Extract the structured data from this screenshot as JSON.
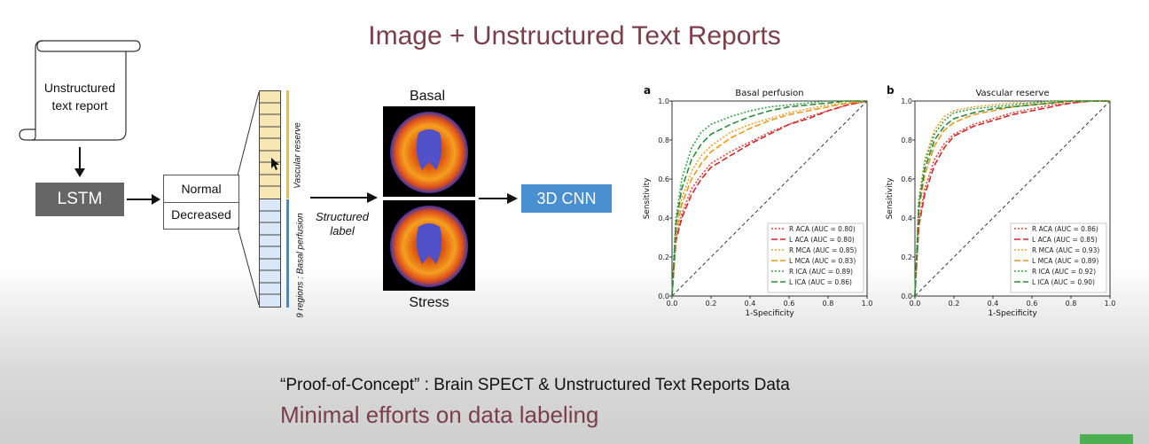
{
  "title": "Image + Unstructured Text Reports",
  "scroll_label": "Unstructured text report",
  "lstm_label": "LSTM",
  "labels": [
    "Normal",
    "Decreased"
  ],
  "vertical_labels": {
    "vascular": "Vascular reserve",
    "basal": "9 regions : Basal perfusion"
  },
  "structured_label": "Structured label",
  "scan_top": "Basal",
  "scan_bottom": "Stress",
  "cnn_label": "3D CNN",
  "footer": {
    "line1": "“Proof-of-Concept” : Brain SPECT & Unstructured Text Reports Data",
    "line2": "Minimal efforts on data labeling"
  },
  "chart_data": [
    {
      "type": "line",
      "panel_letter": "a",
      "title": "Basal perfusion",
      "xlabel": "1-Specificity",
      "ylabel": "Sensitivity",
      "xlim": [
        0,
        1
      ],
      "ylim": [
        0,
        1
      ],
      "ticks": [
        "0.0",
        "0.2",
        "0.4",
        "0.6",
        "0.8",
        "1.0"
      ],
      "legend_position": "bottom-right",
      "series": [
        {
          "name": "R ACA (AUC = 0.80)",
          "color": "#e8453c",
          "dash": "2,2",
          "x": [
            0,
            0.02,
            0.05,
            0.1,
            0.15,
            0.2,
            0.3,
            0.4,
            0.5,
            0.6,
            0.7,
            0.8,
            0.9,
            1
          ],
          "y": [
            0,
            0.3,
            0.42,
            0.55,
            0.62,
            0.68,
            0.74,
            0.79,
            0.84,
            0.88,
            0.92,
            0.95,
            0.98,
            1
          ]
        },
        {
          "name": "L ACA (AUC = 0.80)",
          "color": "#d62728",
          "dash": "7,3",
          "x": [
            0,
            0.02,
            0.05,
            0.1,
            0.15,
            0.2,
            0.3,
            0.4,
            0.5,
            0.6,
            0.7,
            0.8,
            0.9,
            1
          ],
          "y": [
            0,
            0.28,
            0.4,
            0.52,
            0.6,
            0.66,
            0.72,
            0.78,
            0.83,
            0.88,
            0.91,
            0.95,
            0.98,
            1
          ]
        },
        {
          "name": "R MCA (AUC = 0.85)",
          "color": "#f0a030",
          "dash": "2,2",
          "x": [
            0,
            0.02,
            0.05,
            0.1,
            0.15,
            0.2,
            0.3,
            0.4,
            0.5,
            0.6,
            0.7,
            0.8,
            0.9,
            1
          ],
          "y": [
            0,
            0.35,
            0.5,
            0.64,
            0.72,
            0.77,
            0.84,
            0.88,
            0.91,
            0.94,
            0.96,
            0.98,
            0.99,
            1
          ]
        },
        {
          "name": "L MCA (AUC = 0.83)",
          "color": "#e89a1c",
          "dash": "7,3",
          "x": [
            0,
            0.02,
            0.05,
            0.1,
            0.15,
            0.2,
            0.3,
            0.4,
            0.5,
            0.6,
            0.7,
            0.8,
            0.9,
            1
          ],
          "y": [
            0,
            0.32,
            0.47,
            0.6,
            0.68,
            0.74,
            0.81,
            0.86,
            0.9,
            0.93,
            0.95,
            0.97,
            0.99,
            1
          ]
        },
        {
          "name": "R ICA (AUC = 0.89)",
          "color": "#3aa04a",
          "dash": "2,2",
          "x": [
            0,
            0.02,
            0.05,
            0.1,
            0.15,
            0.2,
            0.3,
            0.4,
            0.5,
            0.6,
            0.7,
            0.8,
            0.9,
            1
          ],
          "y": [
            0,
            0.4,
            0.6,
            0.76,
            0.84,
            0.88,
            0.92,
            0.95,
            0.97,
            0.98,
            0.99,
            1,
            1,
            1
          ]
        },
        {
          "name": "L ICA (AUC = 0.86)",
          "color": "#2e8b3a",
          "dash": "7,3",
          "x": [
            0,
            0.02,
            0.05,
            0.1,
            0.15,
            0.2,
            0.3,
            0.4,
            0.5,
            0.6,
            0.7,
            0.8,
            0.9,
            1
          ],
          "y": [
            0,
            0.37,
            0.55,
            0.7,
            0.78,
            0.83,
            0.88,
            0.92,
            0.95,
            0.97,
            0.98,
            0.99,
            1,
            1
          ]
        }
      ]
    },
    {
      "type": "line",
      "panel_letter": "b",
      "title": "Vascular reserve",
      "xlabel": "1-Specificity",
      "ylabel": "Sensitivity",
      "xlim": [
        0,
        1
      ],
      "ylim": [
        0,
        1
      ],
      "ticks": [
        "0.0",
        "0.2",
        "0.4",
        "0.6",
        "0.8",
        "1.0"
      ],
      "legend_position": "bottom-right",
      "series": [
        {
          "name": "R ACA (AUC = 0.86)",
          "color": "#e8453c",
          "dash": "2,2",
          "x": [
            0,
            0.02,
            0.05,
            0.1,
            0.15,
            0.2,
            0.3,
            0.4,
            0.5,
            0.6,
            0.7,
            0.8,
            0.9,
            1
          ],
          "y": [
            0,
            0.38,
            0.55,
            0.7,
            0.78,
            0.83,
            0.88,
            0.91,
            0.94,
            0.96,
            0.98,
            0.99,
            1,
            1
          ]
        },
        {
          "name": "L ACA (AUC = 0.85)",
          "color": "#d62728",
          "dash": "7,3",
          "x": [
            0,
            0.02,
            0.05,
            0.1,
            0.15,
            0.2,
            0.3,
            0.4,
            0.5,
            0.6,
            0.7,
            0.8,
            0.9,
            1
          ],
          "y": [
            0,
            0.36,
            0.52,
            0.67,
            0.76,
            0.82,
            0.87,
            0.9,
            0.93,
            0.95,
            0.97,
            0.99,
            1,
            1
          ]
        },
        {
          "name": "R MCA (AUC = 0.93)",
          "color": "#f0a030",
          "dash": "2,2",
          "x": [
            0,
            0.02,
            0.05,
            0.1,
            0.15,
            0.2,
            0.3,
            0.4,
            0.5,
            0.6,
            0.7,
            0.8,
            0.9,
            1
          ],
          "y": [
            0,
            0.5,
            0.7,
            0.85,
            0.92,
            0.95,
            0.97,
            0.98,
            0.99,
            0.99,
            1,
            1,
            1,
            1
          ]
        },
        {
          "name": "L MCA (AUC = 0.89)",
          "color": "#e89a1c",
          "dash": "7,3",
          "x": [
            0,
            0.02,
            0.05,
            0.1,
            0.15,
            0.2,
            0.3,
            0.4,
            0.5,
            0.6,
            0.7,
            0.8,
            0.9,
            1
          ],
          "y": [
            0,
            0.44,
            0.62,
            0.77,
            0.85,
            0.89,
            0.93,
            0.95,
            0.97,
            0.98,
            0.99,
            1,
            1,
            1
          ]
        },
        {
          "name": "R ICA (AUC = 0.92)",
          "color": "#3aa04a",
          "dash": "2,2",
          "x": [
            0,
            0.02,
            0.05,
            0.1,
            0.15,
            0.2,
            0.3,
            0.4,
            0.5,
            0.6,
            0.7,
            0.8,
            0.9,
            1
          ],
          "y": [
            0,
            0.48,
            0.68,
            0.83,
            0.9,
            0.94,
            0.96,
            0.97,
            0.98,
            0.99,
            1,
            1,
            1,
            1
          ]
        },
        {
          "name": "L ICA (AUC = 0.90)",
          "color": "#2e8b3a",
          "dash": "7,3",
          "x": [
            0,
            0.02,
            0.05,
            0.1,
            0.15,
            0.2,
            0.3,
            0.4,
            0.5,
            0.6,
            0.7,
            0.8,
            0.9,
            1
          ],
          "y": [
            0,
            0.46,
            0.65,
            0.8,
            0.87,
            0.91,
            0.94,
            0.96,
            0.97,
            0.98,
            0.99,
            1,
            1,
            1
          ]
        }
      ]
    }
  ]
}
